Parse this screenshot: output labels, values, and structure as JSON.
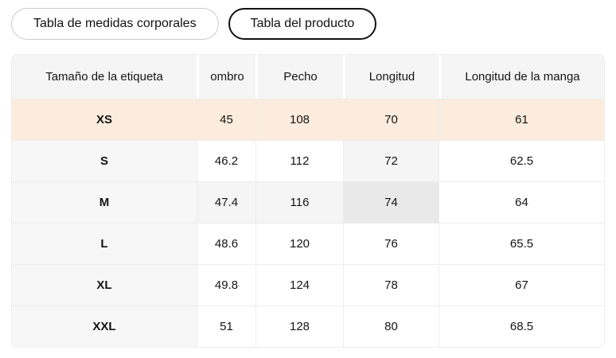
{
  "tabs": [
    {
      "label": "Tabla de medidas corporales",
      "active": false
    },
    {
      "label": "Tabla del producto",
      "active": true
    }
  ],
  "table": {
    "columns": [
      "Tamaño de la etiqueta",
      "ombro",
      "Pecho",
      "Longitud",
      "Longitud de la manga"
    ],
    "rows": [
      {
        "size": "XS",
        "values": [
          "45",
          "108",
          "70",
          "61"
        ],
        "state": "selected"
      },
      {
        "size": "S",
        "values": [
          "46.2",
          "112",
          "72",
          "62.5"
        ],
        "cell_states": {
          "2": "highlight"
        }
      },
      {
        "size": "M",
        "values": [
          "47.4",
          "116",
          "74",
          "64"
        ],
        "cell_states": {
          "0": "highlight",
          "1": "highlight",
          "2": "active"
        }
      },
      {
        "size": "L",
        "values": [
          "48.6",
          "120",
          "76",
          "65.5"
        ]
      },
      {
        "size": "XL",
        "values": [
          "49.8",
          "124",
          "78",
          "67"
        ]
      },
      {
        "size": "XXL",
        "values": [
          "51",
          "128",
          "80",
          "68.5"
        ]
      }
    ]
  },
  "colors": {
    "selected_row_bg": "#fcecdd",
    "highlight_cell_bg": "#f5f5f5",
    "active_cell_bg": "#e9e9e9",
    "header_bg": "#f5f5f6",
    "size_column_bg": "#f6f7f6",
    "border": "#ededed",
    "tab_active_border": "#111111",
    "tab_inactive_border": "#c9cccc"
  }
}
